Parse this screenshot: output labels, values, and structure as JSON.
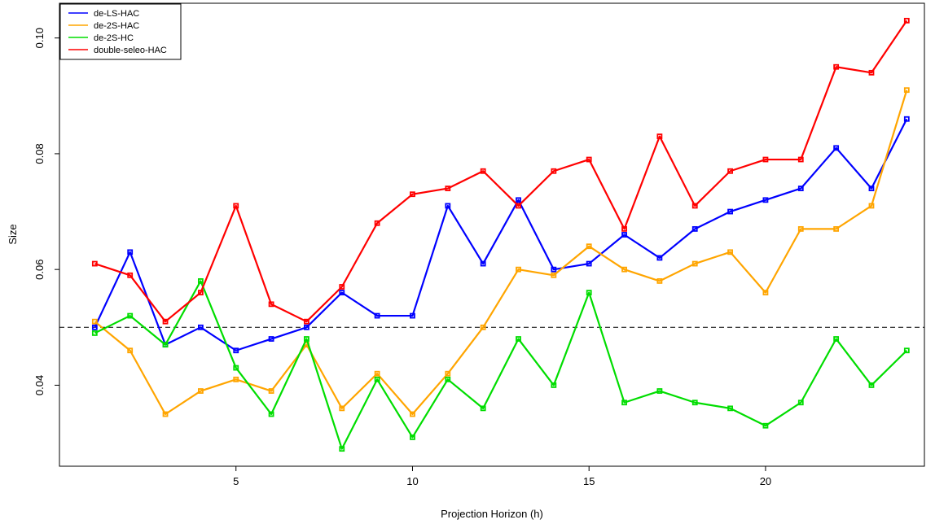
{
  "chart_data": {
    "type": "line",
    "title": "",
    "xlabel": "Projection Horizon (h)",
    "ylabel": "Size",
    "xlim": [
      0.0,
      24.5
    ],
    "ylim": [
      0.026,
      0.106
    ],
    "x_ticks": [
      5,
      10,
      15,
      20
    ],
    "y_ticks": [
      0.04,
      0.06,
      0.08,
      0.1
    ],
    "y_tick_labels": [
      "0.04",
      "0.06",
      "0.08",
      "0.10"
    ],
    "reference_line": {
      "y": 0.05,
      "style": "dashed"
    },
    "legend": {
      "placement": "top-left"
    },
    "x": [
      1,
      2,
      3,
      4,
      5,
      6,
      7,
      8,
      9,
      10,
      11,
      12,
      13,
      14,
      15,
      16,
      17,
      18,
      19,
      20,
      21,
      22,
      23,
      24
    ],
    "series": [
      {
        "name": "de-LS-HAC",
        "color": "#0000FF",
        "values": [
          0.05,
          0.063,
          0.047,
          0.05,
          0.046,
          0.048,
          0.05,
          0.056,
          0.052,
          0.052,
          0.071,
          0.061,
          0.072,
          0.06,
          0.061,
          0.066,
          0.062,
          0.067,
          0.07,
          0.072,
          0.074,
          0.081,
          0.074,
          0.086
        ]
      },
      {
        "name": "de-2S-HAC",
        "color": "#FFA500",
        "values": [
          0.051,
          0.046,
          0.035,
          0.039,
          0.041,
          0.039,
          0.047,
          0.036,
          0.042,
          0.035,
          0.042,
          0.05,
          0.06,
          0.059,
          0.064,
          0.06,
          0.058,
          0.061,
          0.063,
          0.056,
          0.067,
          0.067,
          0.071,
          0.091
        ]
      },
      {
        "name": "de-2S-HC",
        "color": "#00DD00",
        "values": [
          0.049,
          0.052,
          0.047,
          0.058,
          0.043,
          0.035,
          0.048,
          0.029,
          0.041,
          0.031,
          0.041,
          0.036,
          0.048,
          0.04,
          0.056,
          0.037,
          0.039,
          0.037,
          0.036,
          0.033,
          0.037,
          0.048,
          0.04,
          0.046
        ]
      },
      {
        "name": "double-seleo-HAC",
        "color": "#FF0000",
        "values": [
          0.061,
          0.059,
          0.051,
          0.056,
          0.071,
          0.054,
          0.051,
          0.057,
          0.068,
          0.073,
          0.074,
          0.077,
          0.071,
          0.077,
          0.079,
          0.067,
          0.083,
          0.071,
          0.077,
          0.079,
          0.079,
          0.095,
          0.094,
          0.103
        ]
      }
    ]
  }
}
